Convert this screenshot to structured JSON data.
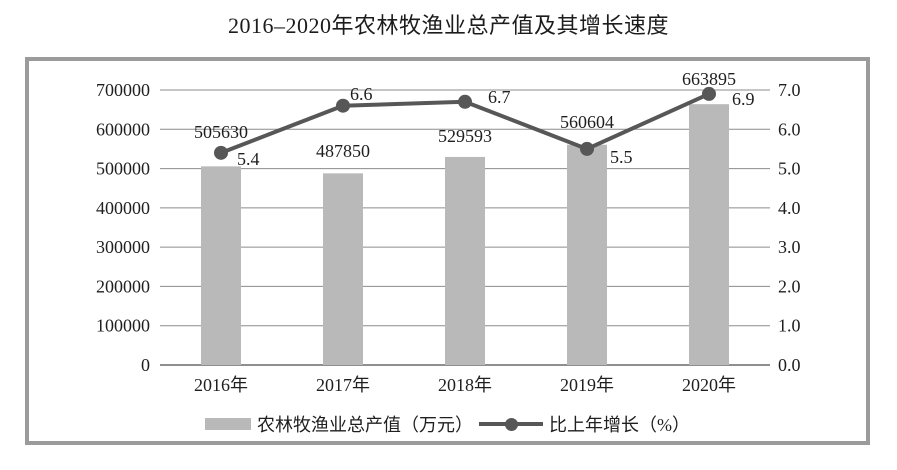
{
  "title": "2016–2020年农林牧渔业总产值及其增长速度",
  "colors": {
    "bar": "#b9b9b9",
    "line": "#575757",
    "grid": "#8c8c8c",
    "axis": "#6a6a6a",
    "frame_border": "#9b9b9b",
    "text": "#1f1f1f"
  },
  "chart_data": {
    "type": "bar",
    "combo": "bar+line",
    "title": "2016–2020年农林牧渔业总产值及其增长速度",
    "categories": [
      "2016年",
      "2017年",
      "2018年",
      "2019年",
      "2020年"
    ],
    "series": [
      {
        "name": "农林牧渔业总产值（万元）",
        "type": "bar",
        "axis": "left",
        "color": "#b9b9b9",
        "values": [
          505630,
          487850,
          529593,
          560604,
          663895
        ],
        "labels": [
          "505630",
          "487850",
          "529593",
          "560604",
          "663895"
        ]
      },
      {
        "name": "比上年增长（%）",
        "type": "line",
        "axis": "right",
        "color": "#575757",
        "values": [
          5.4,
          6.6,
          6.7,
          5.5,
          6.9
        ],
        "labels": [
          "5.4",
          "6.6",
          "6.7",
          "5.5",
          "6.9"
        ]
      }
    ],
    "left_axis": {
      "min": 0,
      "max": 700000,
      "step": 100000,
      "ticks": [
        "0",
        "100000",
        "200000",
        "300000",
        "400000",
        "500000",
        "600000",
        "700000"
      ]
    },
    "right_axis": {
      "min": 0,
      "max": 7,
      "step": 1,
      "ticks": [
        "0.0",
        "1.0",
        "2.0",
        "3.0",
        "4.0",
        "5.0",
        "6.0",
        "7.0"
      ]
    },
    "grid": true,
    "legend_position": "bottom"
  }
}
